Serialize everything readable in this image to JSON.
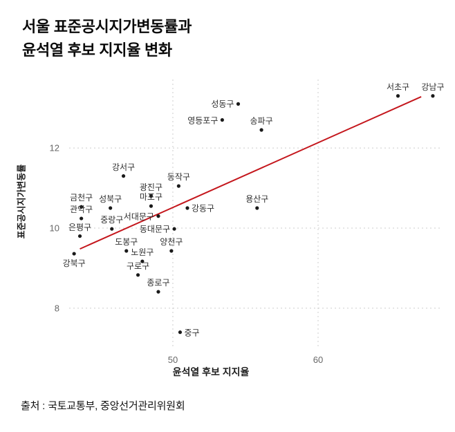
{
  "title": {
    "line1": "서울 표준공시지가변동률과",
    "line2": "윤석열 후보 지지율 변화"
  },
  "source": "출처 : 국토교통부, 중앙선거관리위원회",
  "chart_data": {
    "type": "scatter",
    "title": "서울 표준공시지가변동률과 윤석열 후보 지지율 변화",
    "xlabel": "윤석열 후보 지지율",
    "ylabel": "표준공시지가변동률",
    "x_ticks": [
      50,
      60
    ],
    "y_ticks": [
      8,
      10,
      12
    ],
    "xlim": [
      42.86,
      68.57
    ],
    "ylim": [
      6.98,
      13.71
    ],
    "grid": "dashed",
    "grid_color": "#cccccc",
    "point_color": "#1a1a1a",
    "label_color": "#2e2e2e",
    "trend_color": "#c4161c",
    "trendline": {
      "x1": 43.6,
      "y1": 9.48,
      "x2": 67.1,
      "y2": 13.28
    },
    "points": [
      {
        "name": "강북구",
        "x": 43.2,
        "y": 9.36,
        "label_pos": "below"
      },
      {
        "name": "은평구",
        "x": 43.6,
        "y": 9.8,
        "label_pos": "above"
      },
      {
        "name": "관악구",
        "x": 43.7,
        "y": 10.24,
        "label_pos": "above"
      },
      {
        "name": "금천구",
        "x": 43.7,
        "y": 10.53,
        "label_pos": "above"
      },
      {
        "name": "성북구",
        "x": 45.7,
        "y": 10.5,
        "label_pos": "above"
      },
      {
        "name": "중랑구",
        "x": 45.8,
        "y": 9.98,
        "label_pos": "above"
      },
      {
        "name": "강서구",
        "x": 46.6,
        "y": 11.3,
        "label_pos": "above"
      },
      {
        "name": "도봉구",
        "x": 46.8,
        "y": 9.43,
        "label_pos": "above"
      },
      {
        "name": "구로구",
        "x": 47.6,
        "y": 8.83,
        "label_pos": "above"
      },
      {
        "name": "노원구",
        "x": 47.9,
        "y": 9.17,
        "label_pos": "above"
      },
      {
        "name": "광진구",
        "x": 48.5,
        "y": 10.8,
        "label_pos": "above"
      },
      {
        "name": "마포구",
        "x": 48.5,
        "y": 10.55,
        "label_pos": "above"
      },
      {
        "name": "서대문구",
        "x": 49.0,
        "y": 10.3,
        "label_pos": "left"
      },
      {
        "name": "종로구",
        "x": 49.0,
        "y": 8.41,
        "label_pos": "above"
      },
      {
        "name": "양천구",
        "x": 49.9,
        "y": 9.43,
        "label_pos": "above"
      },
      {
        "name": "동대문구",
        "x": 50.1,
        "y": 9.98,
        "label_pos": "left"
      },
      {
        "name": "동작구",
        "x": 50.4,
        "y": 11.05,
        "label_pos": "above"
      },
      {
        "name": "중구",
        "x": 50.5,
        "y": 7.4,
        "label_pos": "right"
      },
      {
        "name": "강동구",
        "x": 51.0,
        "y": 10.5,
        "label_pos": "right"
      },
      {
        "name": "영등포구",
        "x": 53.4,
        "y": 12.7,
        "label_pos": "left"
      },
      {
        "name": "성동구",
        "x": 54.5,
        "y": 13.1,
        "label_pos": "left"
      },
      {
        "name": "용산구",
        "x": 55.8,
        "y": 10.5,
        "label_pos": "above"
      },
      {
        "name": "송파구",
        "x": 56.1,
        "y": 12.45,
        "label_pos": "above"
      },
      {
        "name": "서초구",
        "x": 65.5,
        "y": 13.3,
        "label_pos": "above"
      },
      {
        "name": "강남구",
        "x": 67.9,
        "y": 13.3,
        "label_pos": "above"
      }
    ]
  }
}
